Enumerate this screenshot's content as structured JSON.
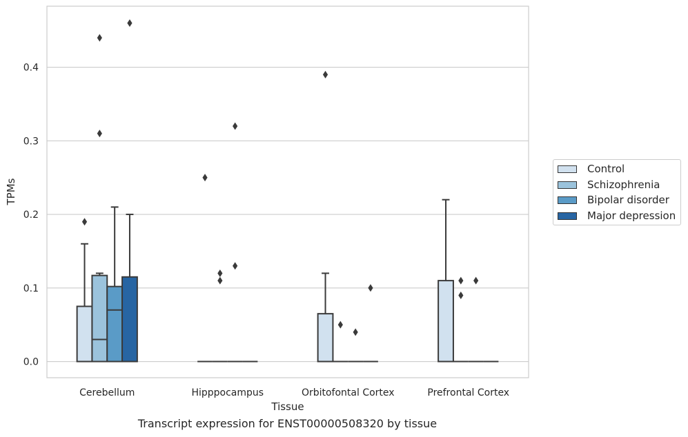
{
  "chart_data": {
    "type": "box",
    "title": "",
    "caption": "Transcript expression for ENST00000508320 by tissue",
    "xlabel": "Tissue",
    "ylabel": "TPMs",
    "ylim": [
      -0.022,
      0.483
    ],
    "yticks": [
      0.0,
      0.1,
      0.2,
      0.3,
      0.4
    ],
    "ytick_labels": [
      "0.0",
      "0.1",
      "0.2",
      "0.3",
      "0.4"
    ],
    "grid": "horizontal",
    "legend_position": "right",
    "categories": [
      "Cerebellum",
      "Hipppocampus",
      "Orbitofontal Cortex",
      "Prefrontal Cortex"
    ],
    "series": [
      {
        "name": "Control",
        "color": "#d1e1ef",
        "boxes": [
          {
            "q1": 0.0,
            "median": 0.0,
            "q3": 0.075,
            "whisker_low": 0.0,
            "whisker_high": 0.16,
            "outliers": [
              0.19
            ]
          },
          {
            "q1": 0.0,
            "median": 0.0,
            "q3": 0.0,
            "whisker_low": 0.0,
            "whisker_high": 0.0,
            "outliers": [
              0.25
            ]
          },
          {
            "q1": 0.0,
            "median": 0.0,
            "q3": 0.065,
            "whisker_low": 0.0,
            "whisker_high": 0.12,
            "outliers": [
              0.39
            ]
          },
          {
            "q1": 0.0,
            "median": 0.0,
            "q3": 0.11,
            "whisker_low": 0.0,
            "whisker_high": 0.22,
            "outliers": []
          }
        ]
      },
      {
        "name": "Schizophrenia",
        "color": "#9bc3dc",
        "boxes": [
          {
            "q1": 0.0,
            "median": 0.03,
            "q3": 0.117,
            "whisker_low": 0.0,
            "whisker_high": 0.12,
            "outliers": [
              0.31,
              0.44
            ]
          },
          {
            "q1": 0.0,
            "median": 0.0,
            "q3": 0.0,
            "whisker_low": 0.0,
            "whisker_high": 0.0,
            "outliers": [
              0.11,
              0.12
            ]
          },
          {
            "q1": 0.0,
            "median": 0.0,
            "q3": 0.0,
            "whisker_low": 0.0,
            "whisker_high": 0.0,
            "outliers": [
              0.05
            ]
          },
          {
            "q1": 0.0,
            "median": 0.0,
            "q3": 0.0,
            "whisker_low": 0.0,
            "whisker_high": 0.0,
            "outliers": [
              0.09,
              0.11
            ]
          }
        ]
      },
      {
        "name": "Bipolar disorder",
        "color": "#5a9bc7",
        "boxes": [
          {
            "q1": 0.0,
            "median": 0.07,
            "q3": 0.102,
            "whisker_low": 0.0,
            "whisker_high": 0.21,
            "outliers": []
          },
          {
            "q1": 0.0,
            "median": 0.0,
            "q3": 0.0,
            "whisker_low": 0.0,
            "whisker_high": 0.0,
            "outliers": [
              0.13,
              0.32
            ]
          },
          {
            "q1": 0.0,
            "median": 0.0,
            "q3": 0.0,
            "whisker_low": 0.0,
            "whisker_high": 0.0,
            "outliers": [
              0.04
            ]
          },
          {
            "q1": 0.0,
            "median": 0.0,
            "q3": 0.0,
            "whisker_low": 0.0,
            "whisker_high": 0.0,
            "outliers": [
              0.11
            ]
          }
        ]
      },
      {
        "name": "Major depression",
        "color": "#2765a3",
        "boxes": [
          {
            "q1": 0.0,
            "median": 0.0,
            "q3": 0.115,
            "whisker_low": 0.0,
            "whisker_high": 0.2,
            "outliers": [
              0.46
            ]
          },
          {
            "q1": 0.0,
            "median": 0.0,
            "q3": 0.0,
            "whisker_low": 0.0,
            "whisker_high": 0.0,
            "outliers": []
          },
          {
            "q1": 0.0,
            "median": 0.0,
            "q3": 0.0,
            "whisker_low": 0.0,
            "whisker_high": 0.0,
            "outliers": [
              0.1
            ]
          },
          {
            "q1": 0.0,
            "median": 0.0,
            "q3": 0.0,
            "whisker_low": 0.0,
            "whisker_high": 0.0,
            "outliers": []
          }
        ]
      }
    ]
  }
}
